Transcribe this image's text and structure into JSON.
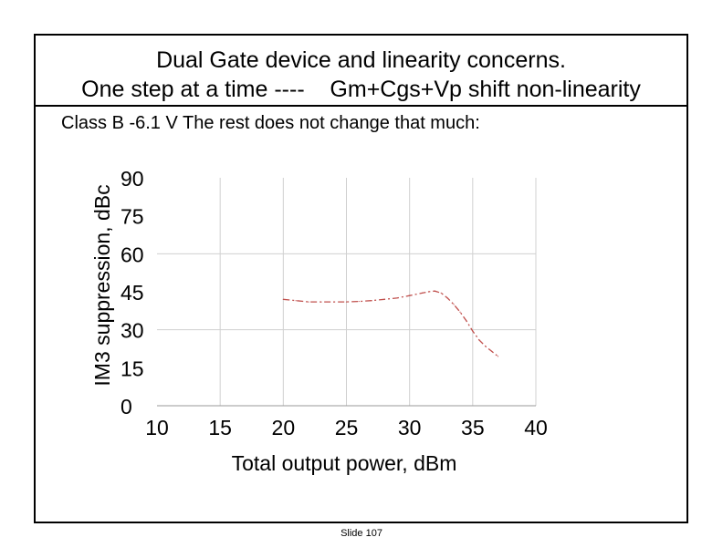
{
  "slide": {
    "title_line1": "Dual Gate device and linearity concerns.",
    "title_line2": "One step at a time ----    Gm+Cgs+Vp shift non-linearity",
    "subtitle": "Class B -6.1 V The rest does not change that much:",
    "footer": "Slide 107"
  },
  "chart_data": {
    "type": "line",
    "title": "",
    "xlabel": "Total output power, dBm",
    "ylabel": "IM3 suppression, dBc",
    "xlim": [
      10,
      40
    ],
    "ylim": [
      0,
      90
    ],
    "xticks": [
      10,
      15,
      20,
      25,
      30,
      35,
      40
    ],
    "yticks": [
      0,
      15,
      30,
      45,
      60,
      75,
      90
    ],
    "grid": true,
    "series": [
      {
        "name": "",
        "color": "#c0504d",
        "x": [
          20.0,
          21.0,
          22.0,
          23.0,
          24.0,
          25.0,
          26.0,
          27.0,
          28.0,
          29.0,
          30.0,
          31.0,
          31.5,
          32.0,
          32.5,
          33.0,
          33.5,
          34.0,
          34.5,
          35.0,
          35.5,
          36.0,
          36.5,
          37.0
        ],
        "y": [
          42.0,
          41.5,
          41.0,
          41.0,
          41.0,
          41.0,
          41.2,
          41.5,
          42.0,
          42.5,
          43.5,
          44.5,
          45.0,
          45.3,
          44.5,
          42.5,
          40.0,
          37.0,
          33.5,
          29.5,
          26.0,
          23.5,
          21.5,
          19.5
        ]
      }
    ]
  }
}
